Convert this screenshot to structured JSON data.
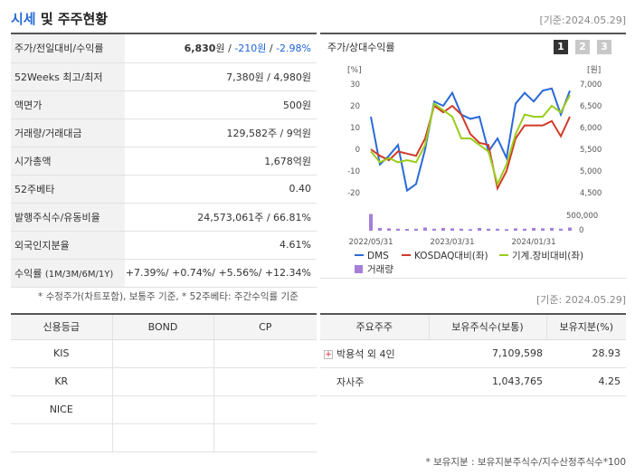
{
  "header": {
    "title1": "시세",
    "title2": " 및 주주현황",
    "date": "[기준:2024.05.29]"
  },
  "info_rows": [
    {
      "label": "주가/전일대비/수익률",
      "v1": "6,830",
      "v1u": "원 / ",
      "v2": "-210원",
      "sep": " / ",
      "v3": "-2.98%"
    },
    {
      "label": "52Weeks 최고/최저",
      "value": "7,380원 / 4,980원"
    },
    {
      "label": "액면가",
      "value": "500원"
    },
    {
      "label": "거래량/거래대금",
      "value": "129,582주 / 9억원"
    },
    {
      "label": "시가총액",
      "value": "1,678억원"
    },
    {
      "label": "52주베타",
      "value": "0.40"
    },
    {
      "label": "발행주식수/유동비율",
      "value": "24,573,061주 / 66.81%"
    },
    {
      "label": "외국인지분율",
      "value": "4.61%"
    },
    {
      "label": "수익률",
      "label_sub": "(1M/3M/6M/1Y)",
      "value": "+7.39%/ +0.74%/ +5.56%/ +12.34%"
    }
  ],
  "note1": "* 수정주가(차트포함), 보통주 기준, * 52주베타: 주간수익률 기준",
  "chart": {
    "title": "주가/상대수익률",
    "pages": [
      "1",
      "2",
      "3"
    ],
    "active_page": "1",
    "left_unit": "[%]",
    "right_unit": "[원]",
    "vol_tick": "500,000",
    "vol_zero": "0"
  },
  "chart_data": {
    "type": "line",
    "x_labels": [
      "2022/05/31",
      "2023/03/31",
      "2024/01/31"
    ],
    "left_axis": {
      "ticks": [
        30,
        20,
        10,
        0,
        -10,
        -20
      ],
      "range": [
        -20,
        30
      ]
    },
    "right_axis": {
      "ticks": [
        7000,
        6500,
        6000,
        5500,
        5000,
        4500
      ],
      "range": [
        4500,
        7000
      ]
    },
    "series": [
      {
        "name": "DMS",
        "color": "#2a6ad8",
        "values": [
          15,
          -7,
          -3,
          2,
          -19,
          -16,
          0,
          22,
          20,
          26,
          16,
          14,
          15,
          -1,
          5,
          -4,
          21,
          26,
          22,
          27,
          28,
          16,
          27
        ]
      },
      {
        "name": "KOSDAQ대비(좌)",
        "color": "#d23a2a",
        "values": [
          0,
          -3,
          -5,
          -1,
          -2,
          -3,
          5,
          20,
          17,
          20,
          16,
          7,
          3,
          2,
          -18,
          -10,
          5,
          11,
          11,
          11,
          13,
          6,
          15
        ]
      },
      {
        "name": "기계.장비대비(좌)",
        "color": "#9acd1a",
        "values": [
          -1,
          -6,
          -4,
          -6,
          -5,
          -6,
          2,
          21,
          18,
          15,
          5,
          5,
          2,
          -1,
          -16,
          -7,
          7,
          16,
          15,
          15,
          20,
          17,
          25
        ]
      },
      {
        "name": "거래량",
        "color": "#a57fd8",
        "values": [
          420000,
          70000,
          60000,
          50000,
          45000,
          50000,
          80000,
          50000,
          70000,
          60000,
          50000,
          40000,
          70000,
          50000,
          50000,
          40000,
          60000,
          50000,
          70000,
          60000,
          70000,
          50000,
          80000
        ]
      }
    ]
  },
  "date2": "[기준: 2024.05.29]",
  "credit": {
    "headers": [
      "신용등급",
      "BOND",
      "CP"
    ],
    "rows": [
      [
        "KIS",
        "",
        ""
      ],
      [
        "KR",
        "",
        ""
      ],
      [
        "NICE",
        "",
        ""
      ],
      [
        "",
        "",
        ""
      ]
    ]
  },
  "holders": {
    "headers": [
      "주요주주",
      "보유주식수(보통)",
      "보유지분(%)"
    ],
    "rows": [
      {
        "name": "박용석 외 4인",
        "shares": "7,109,598",
        "pct": "28.93",
        "expand": true
      },
      {
        "name": "자사주",
        "shares": "1,043,765",
        "pct": "4.25",
        "expand": false
      }
    ]
  },
  "note2": "* 보유지분 : 보유지분주식수/지수산정주식수*100"
}
